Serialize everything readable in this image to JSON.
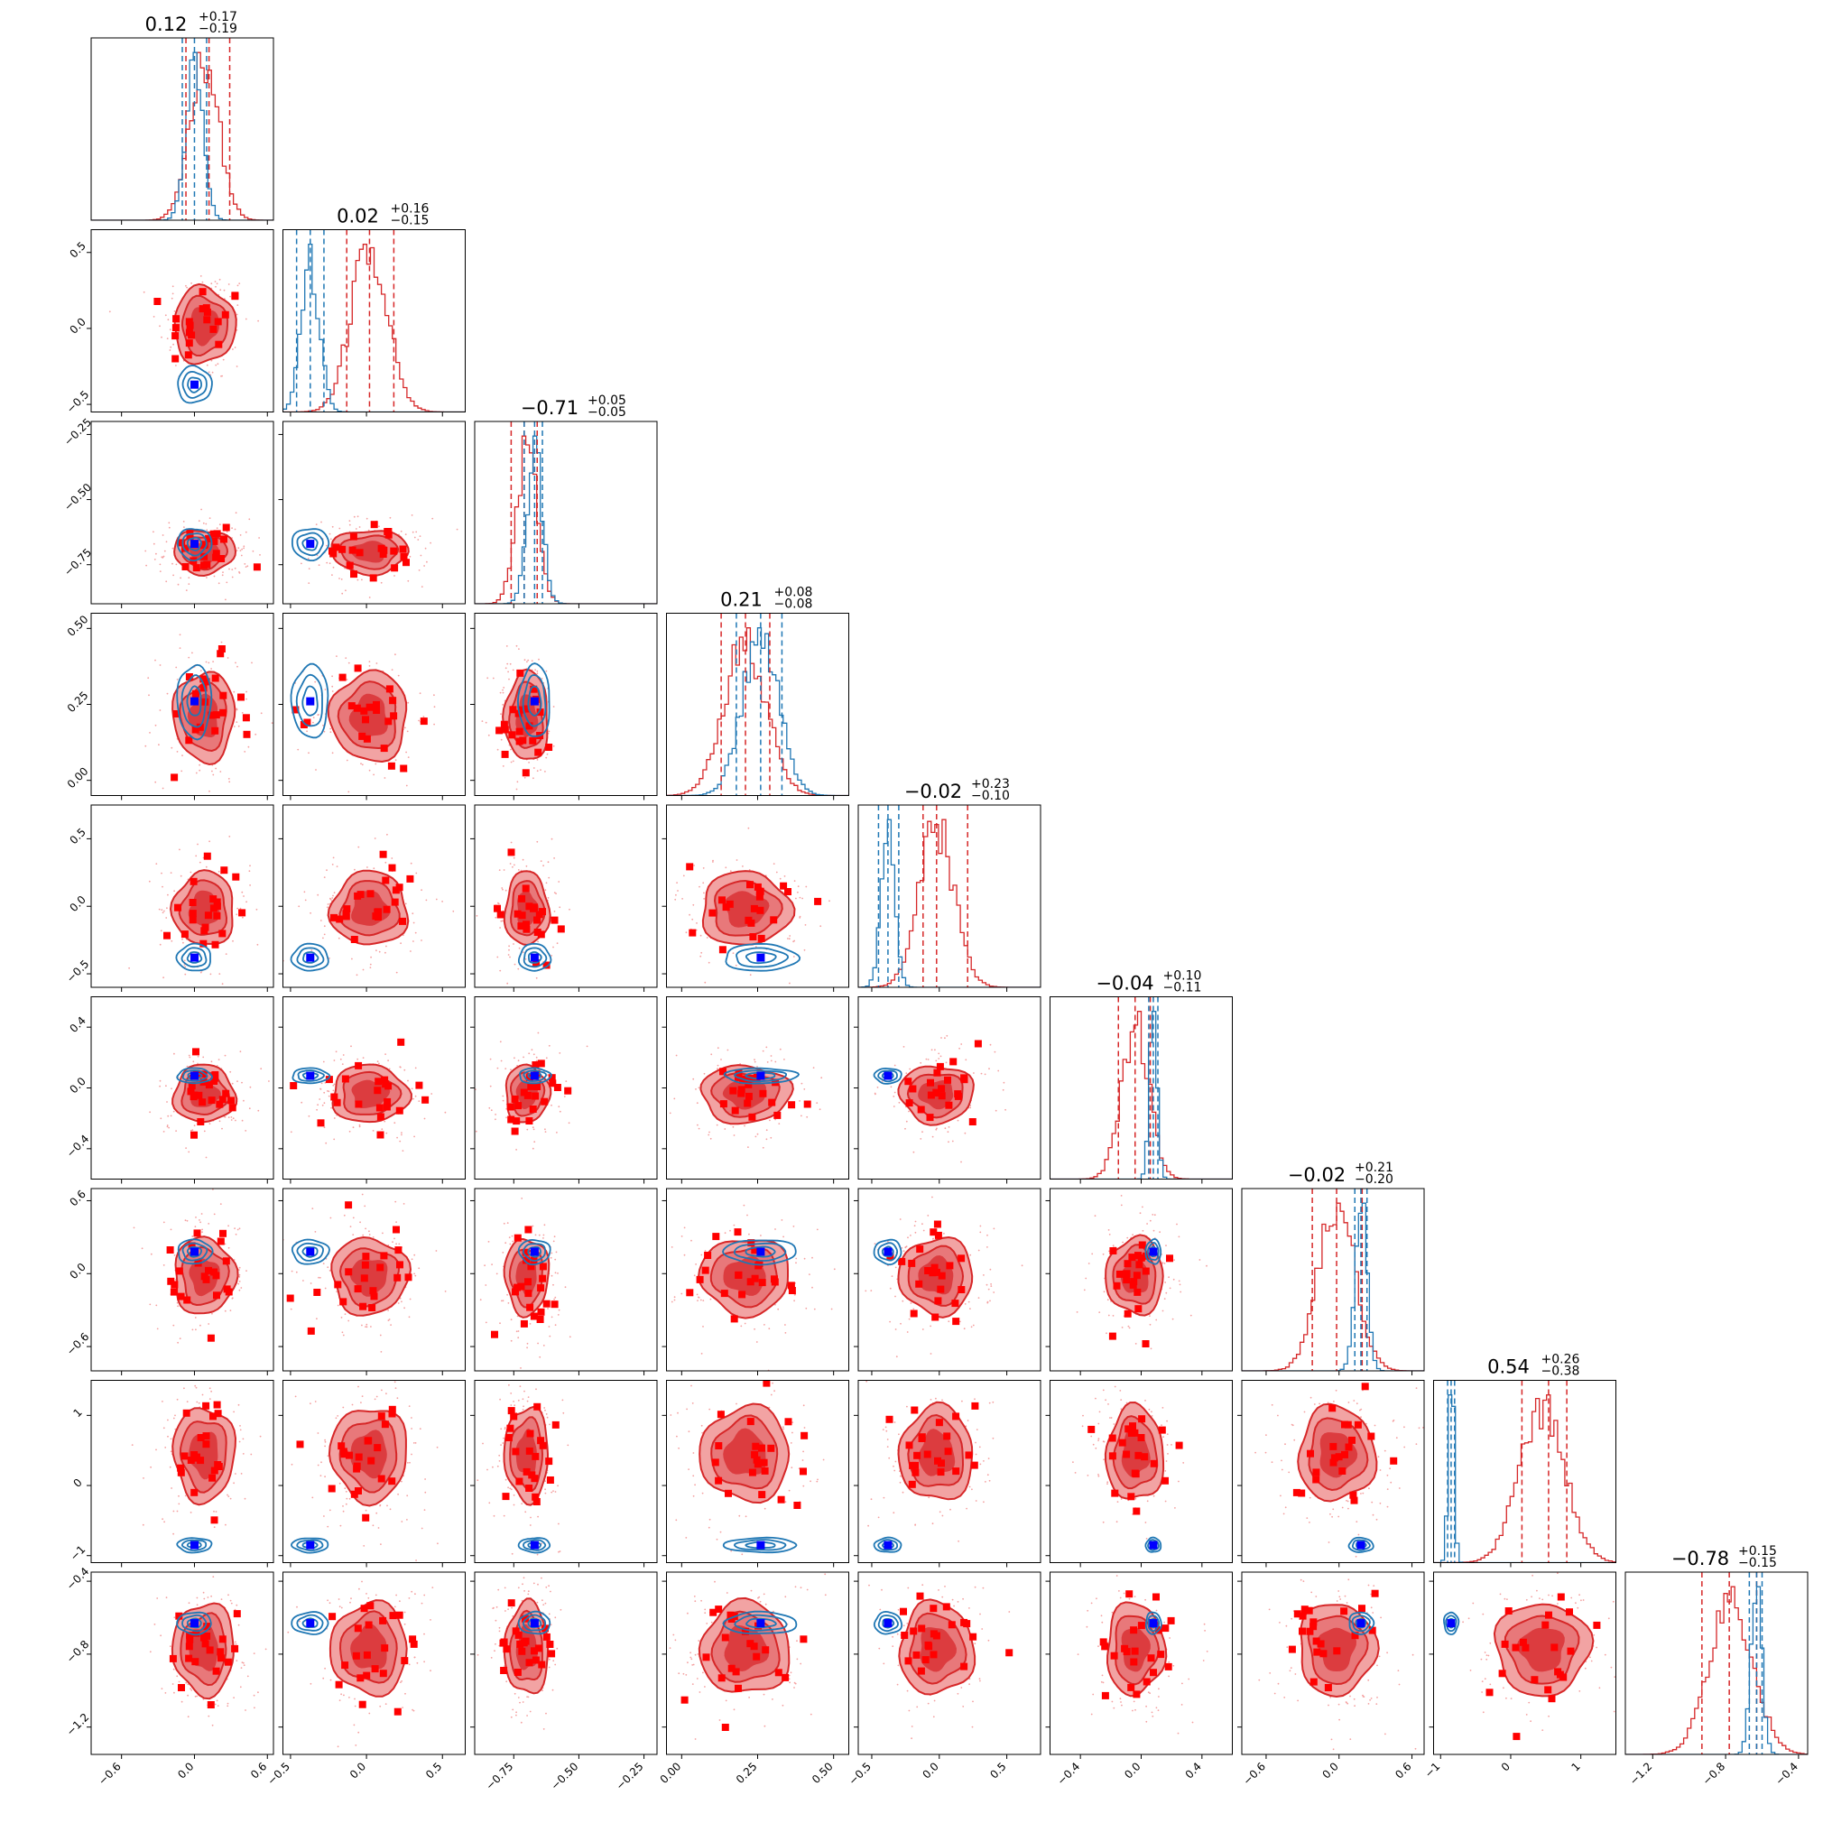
{
  "chart_data": {
    "type": "corner",
    "n_params": 9,
    "series": [
      {
        "name": "",
        "color": "#d62728",
        "role": "filled contours + histograms"
      },
      {
        "name": "",
        "color": "#1f77b4",
        "role": "line contours + histograms"
      }
    ],
    "truth_color": "#0000ff",
    "outlier_color": "#ff0000",
    "titles": [
      {
        "median": "0.12",
        "plus": "+0.17",
        "minus": "−0.19"
      },
      {
        "median": "0.02",
        "plus": "+0.16",
        "minus": "−0.15"
      },
      {
        "median": "−0.71",
        "plus": "+0.05",
        "minus": "−0.05"
      },
      {
        "median": "0.21",
        "plus": "+0.08",
        "minus": "−0.08"
      },
      {
        "median": "−0.02",
        "plus": "+0.23",
        "minus": "−0.10"
      },
      {
        "median": "−0.04",
        "plus": "+0.10",
        "minus": "−0.11"
      },
      {
        "median": "−0.02",
        "plus": "+0.21",
        "minus": "−0.20"
      },
      {
        "median": "0.54",
        "plus": "+0.26",
        "minus": "−0.38"
      },
      {
        "median": "−0.78",
        "plus": "+0.15",
        "minus": "−0.15"
      }
    ],
    "params": [
      {
        "range": [
          -0.85,
          0.65
        ],
        "ticks": [
          -0.6,
          0.0,
          0.6
        ],
        "tick_labels": [
          "−0.6",
          "0.0",
          "0.6"
        ],
        "red": {
          "mean": 0.08,
          "sd": 0.12
        },
        "blue": {
          "mean": 0.0,
          "sd": 0.07
        },
        "truth": 0.0,
        "red_q": [
          -0.07,
          0.12,
          0.29
        ],
        "blue_q": [
          -0.1,
          0.0,
          0.1
        ]
      },
      {
        "range": [
          -0.55,
          0.65
        ],
        "ticks": [
          -0.5,
          0.0,
          0.5
        ],
        "tick_labels": [
          "−0.5",
          "0.0",
          "0.5"
        ],
        "red": {
          "mean": 0.02,
          "sd": 0.12
        },
        "blue": {
          "mean": -0.37,
          "sd": 0.06
        },
        "truth": -0.37,
        "red_q": [
          -0.13,
          0.02,
          0.18
        ],
        "blue_q": [
          -0.46,
          -0.37,
          -0.28
        ]
      },
      {
        "range": [
          -0.9,
          -0.2
        ],
        "ticks": [
          -0.75,
          -0.5,
          -0.25
        ],
        "tick_labels": [
          "−0.75",
          "−0.50",
          "−0.25"
        ],
        "red": {
          "mean": -0.7,
          "sd": 0.04
        },
        "blue": {
          "mean": -0.67,
          "sd": 0.03
        },
        "truth": -0.67,
        "red_q": [
          -0.76,
          -0.71,
          -0.66
        ],
        "blue_q": [
          -0.71,
          -0.67,
          -0.64
        ]
      },
      {
        "range": [
          -0.05,
          0.55
        ],
        "ticks": [
          0.0,
          0.25,
          0.5
        ],
        "tick_labels": [
          "0.00",
          "0.25",
          "0.50"
        ],
        "red": {
          "mean": 0.21,
          "sd": 0.07
        },
        "blue": {
          "mean": 0.26,
          "sd": 0.06
        },
        "truth": 0.26,
        "red_q": [
          0.13,
          0.21,
          0.29
        ],
        "blue_q": [
          0.18,
          0.26,
          0.33
        ]
      },
      {
        "range": [
          -0.6,
          0.75
        ],
        "ticks": [
          -0.5,
          0.0,
          0.5
        ],
        "tick_labels": [
          "−0.5",
          "0.0",
          "0.5"
        ],
        "red": {
          "mean": -0.02,
          "sd": 0.13
        },
        "blue": {
          "mean": -0.38,
          "sd": 0.05
        },
        "truth": -0.38,
        "red_q": [
          -0.12,
          -0.02,
          0.21
        ],
        "blue_q": [
          -0.45,
          -0.38,
          -0.3
        ]
      },
      {
        "range": [
          -0.6,
          0.6
        ],
        "ticks": [
          -0.4,
          0.0,
          0.4
        ],
        "tick_labels": [
          "−0.4",
          "0.0",
          "0.4"
        ],
        "red": {
          "mean": -0.04,
          "sd": 0.09
        },
        "blue": {
          "mean": 0.08,
          "sd": 0.025
        },
        "truth": 0.08,
        "red_q": [
          -0.15,
          -0.04,
          0.06
        ],
        "blue_q": [
          0.05,
          0.08,
          0.11
        ]
      },
      {
        "range": [
          -0.8,
          0.7
        ],
        "ticks": [
          -0.6,
          0.0,
          0.6
        ],
        "tick_labels": [
          "−0.6",
          "0.0",
          "0.6"
        ],
        "red": {
          "mean": -0.02,
          "sd": 0.15
        },
        "blue": {
          "mean": 0.18,
          "sd": 0.05
        },
        "truth": 0.18,
        "red_q": [
          -0.22,
          -0.02,
          0.19
        ],
        "blue_q": [
          0.13,
          0.18,
          0.23
        ]
      },
      {
        "range": [
          -1.1,
          1.5
        ],
        "ticks": [
          -1,
          0,
          1
        ],
        "tick_labels": [
          "−1",
          "0",
          "1"
        ],
        "red": {
          "mean": 0.45,
          "sd": 0.32
        },
        "blue": {
          "mean": -0.85,
          "sd": 0.04
        },
        "truth": -0.85,
        "red_q": [
          0.16,
          0.54,
          0.8
        ],
        "blue_q": [
          -0.9,
          -0.85,
          -0.8
        ]
      },
      {
        "range": [
          -1.35,
          -0.35
        ],
        "ticks": [
          -1.2,
          -0.8,
          -0.4
        ],
        "tick_labels": [
          "−1.2",
          "−0.8",
          "−0.4"
        ],
        "red": {
          "mean": -0.77,
          "sd": 0.12
        },
        "blue": {
          "mean": -0.63,
          "sd": 0.03
        },
        "truth": -0.63,
        "red_q": [
          -0.93,
          -0.78,
          -0.63
        ],
        "blue_q": [
          -0.67,
          -0.63,
          -0.6
        ]
      }
    ]
  }
}
